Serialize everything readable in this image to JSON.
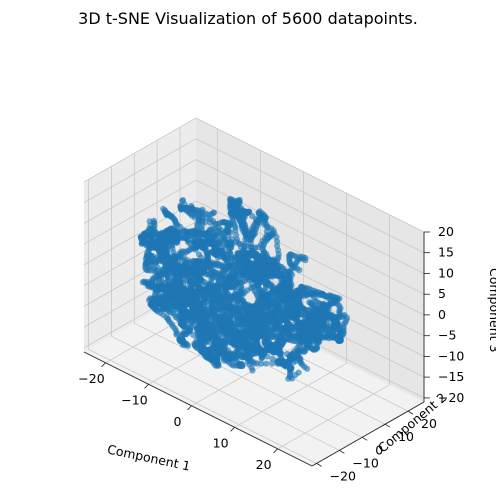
{
  "chart_data": {
    "type": "scatter",
    "projection": "3d",
    "title": "3D t-SNE Visualization of 5600 datapoints.",
    "xlabel": "Component 1",
    "ylabel": "Component 2",
    "zlabel": "Component 3",
    "xlim": [
      -25,
      28
    ],
    "ylim": [
      -22,
      27
    ],
    "zlim": [
      -21,
      20
    ],
    "xticks": [
      -20,
      -10,
      0,
      10,
      20
    ],
    "yticks": [
      -20,
      -10,
      0,
      10,
      20
    ],
    "zticks": [
      -20,
      -15,
      -10,
      -5,
      0,
      5,
      10,
      15,
      20
    ],
    "grid": true,
    "point_count": 5600,
    "colors": {
      "points": "#1f77b4",
      "pane_left": "#ececec",
      "pane_right": "#e6e6e6",
      "pane_floor": "#f2f2f2",
      "grid": "#c8c8c8"
    }
  }
}
